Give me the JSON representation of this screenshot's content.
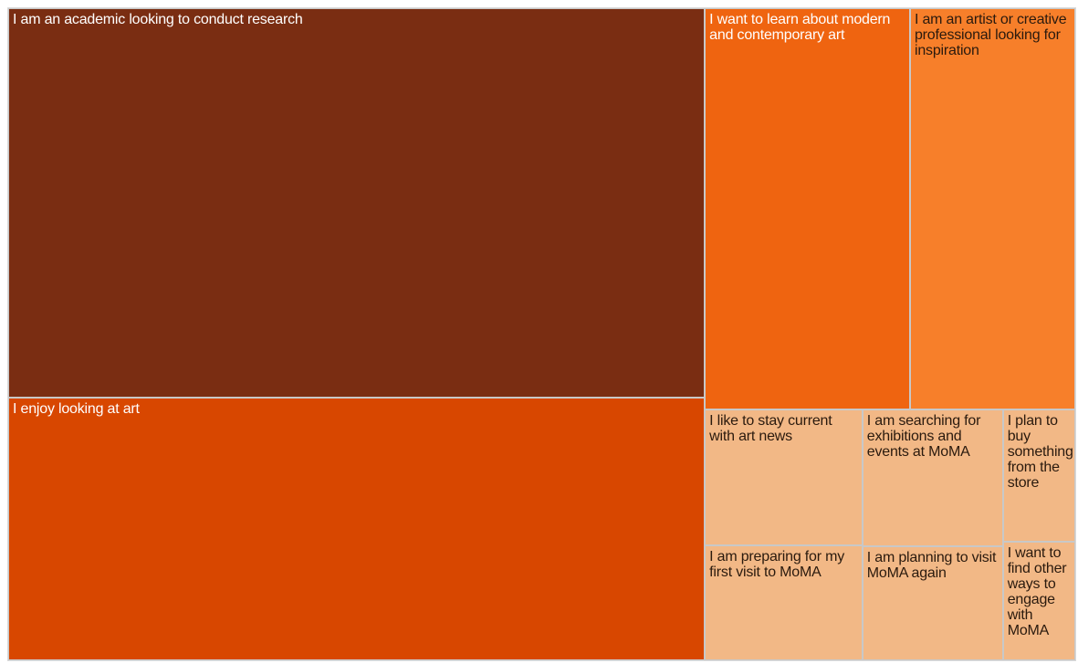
{
  "chart_data": {
    "type": "treemap",
    "title": "",
    "colors": {
      "darkest": "#7a2d12",
      "dark": "#d84700",
      "medium": "#ef6410",
      "medium_light": "#f77f2a",
      "light": "#f2b886"
    },
    "items": [
      {
        "label": "I am an academic looking to conduct research",
        "value": 254,
        "color": "darkest",
        "text": "light-text"
      },
      {
        "label": "I enjoy looking at art",
        "value": 171,
        "color": "dark",
        "text": "light-text"
      },
      {
        "label": "I want to learn about modern and contemporary art",
        "value": 77,
        "color": "medium",
        "text": "light-text"
      },
      {
        "label": "I am an artist or creative professional looking for inspiration",
        "value": 62,
        "color": "medium_light",
        "text": "dark-text"
      },
      {
        "label": "I like to stay current with art news",
        "value": 20,
        "color": "light",
        "text": "dark-text"
      },
      {
        "label": "I am preparing for my first visit to MoMA",
        "value": 17,
        "color": "light",
        "text": "dark-text"
      },
      {
        "label": "I am searching for exhibitions and events at MoMA",
        "value": 18,
        "color": "light",
        "text": "dark-text"
      },
      {
        "label": "I am planning to visit MoMA again",
        "value": 15,
        "color": "light",
        "text": "dark-text"
      },
      {
        "label": "I plan to buy something from the store",
        "value": 9,
        "color": "light",
        "text": "dark-text"
      },
      {
        "label": "I want to find other ways to engage with MoMA",
        "value": 8,
        "color": "light",
        "text": "dark-text"
      }
    ]
  }
}
